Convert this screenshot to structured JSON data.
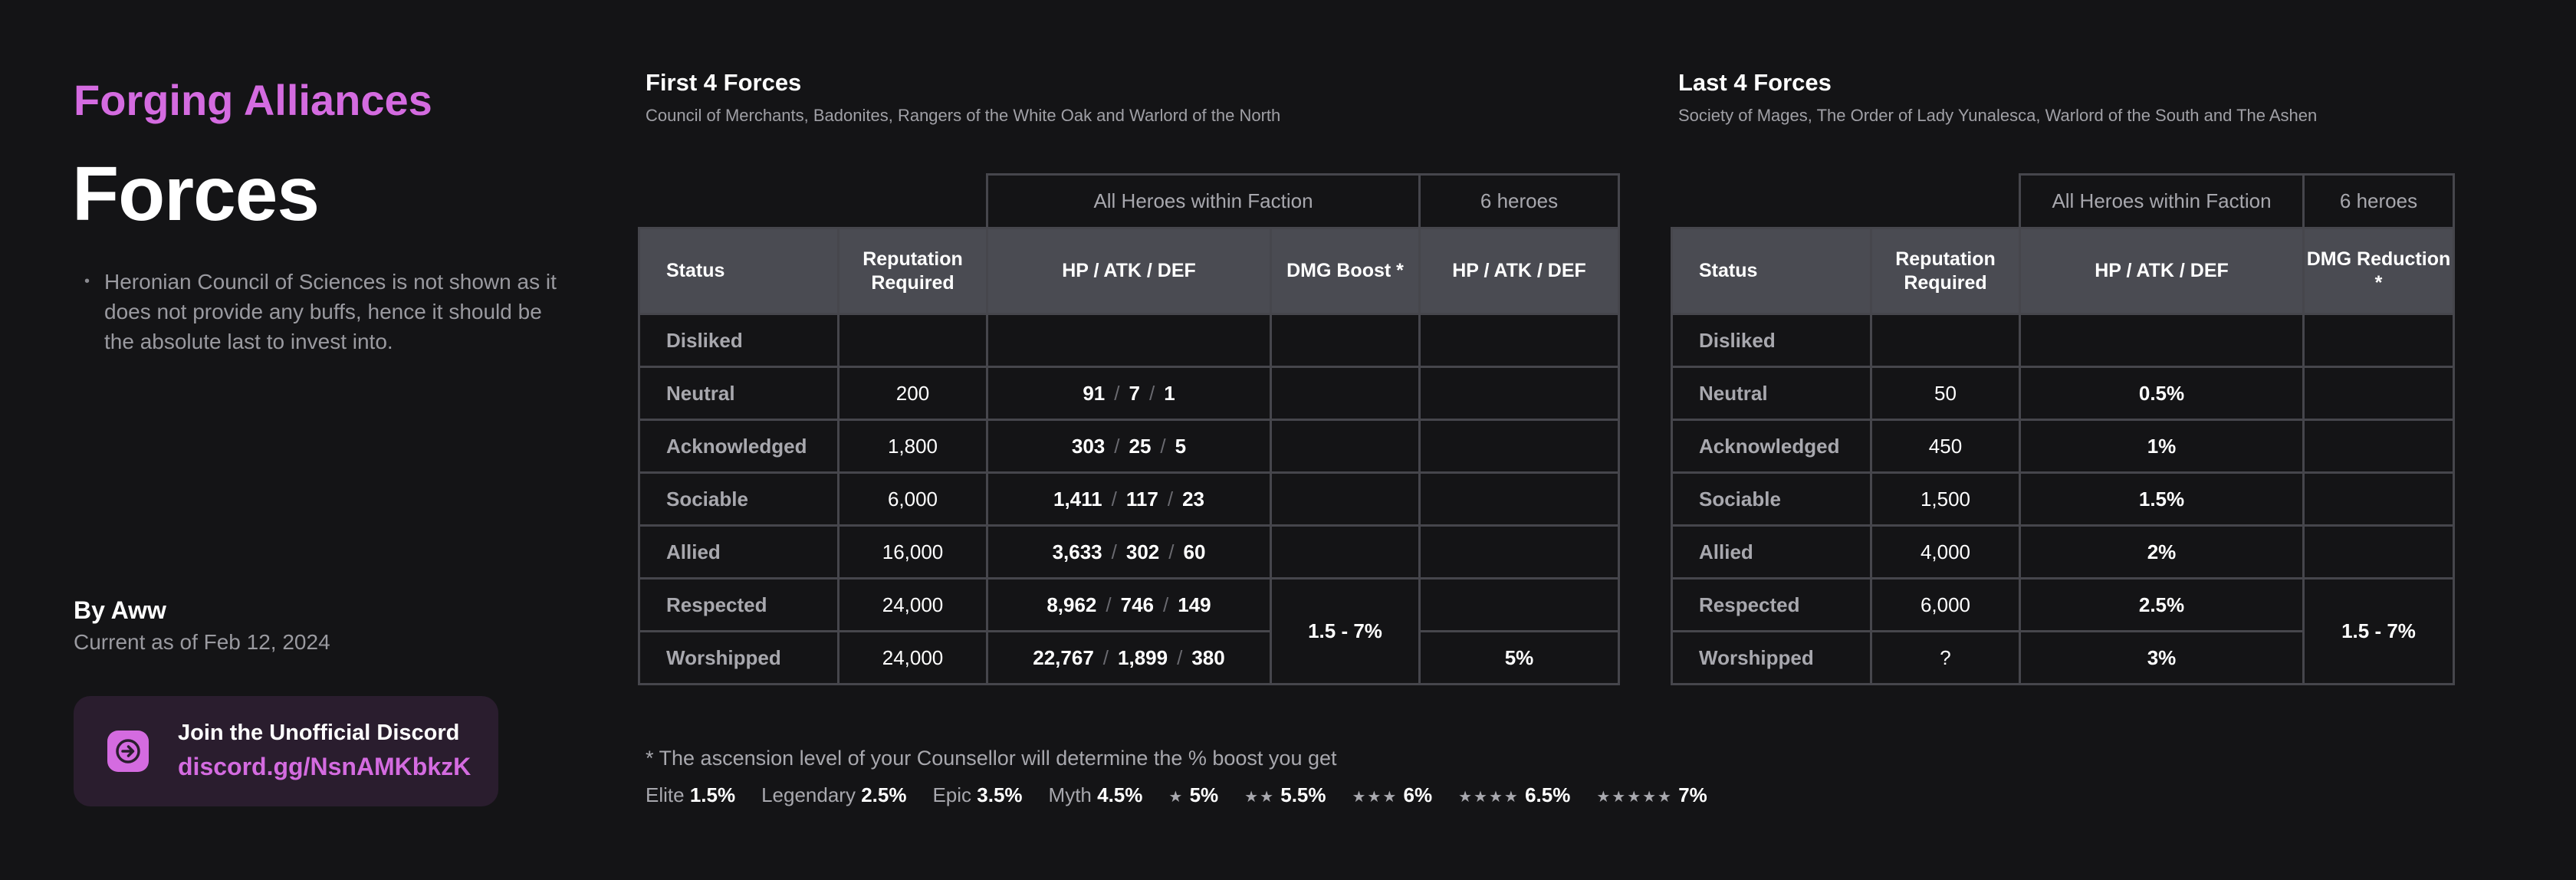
{
  "header": {
    "supertitle": "Forging Alliances",
    "title": "Forces",
    "note": "Heronian Council of Sciences is not shown as it does not provide any buffs, hence it should be the absolute last to invest into."
  },
  "byline": {
    "author": "By Aww",
    "as_of": "Current as of Feb 12, 2024"
  },
  "discord": {
    "heading": "Join the Unofficial Discord",
    "link": "discord.gg/NsnAMKbkzK",
    "icon": "arrow-right-icon",
    "accent": "#d46be0"
  },
  "first": {
    "title": "First 4 Forces",
    "subtitle": "Council of Merchants, Badonites, Rangers of the White Oak and Warlord of the North",
    "group_all": "All Heroes within Faction",
    "group_six": "6 heroes",
    "headers": {
      "status": "Status",
      "rep": "Reputation Required",
      "stats": "HP / ATK / DEF",
      "dmg": "DMG Boost *",
      "six": "HP / ATK / DEF"
    },
    "rows": [
      {
        "status": "Disliked",
        "rep": "",
        "hp": "",
        "atk": "",
        "def": ""
      },
      {
        "status": "Neutral",
        "rep": "200",
        "hp": "91",
        "atk": "7",
        "def": "1"
      },
      {
        "status": "Acknowledged",
        "rep": "1,800",
        "hp": "303",
        "atk": "25",
        "def": "5"
      },
      {
        "status": "Sociable",
        "rep": "6,000",
        "hp": "1,411",
        "atk": "117",
        "def": "23"
      },
      {
        "status": "Allied",
        "rep": "16,000",
        "hp": "3,633",
        "atk": "302",
        "def": "60"
      },
      {
        "status": "Respected",
        "rep": "24,000",
        "hp": "8,962",
        "atk": "746",
        "def": "149"
      },
      {
        "status": "Worshipped",
        "rep": "24,000",
        "hp": "22,767",
        "atk": "1,899",
        "def": "380"
      }
    ],
    "dmg_merged": "1.5 - 7%",
    "six_worshipped": "5%"
  },
  "last": {
    "title": "Last 4 Forces",
    "subtitle": "Society of Mages, The Order of Lady Yunalesca, Warlord of the South and The Ashen",
    "group_all": "All Heroes within Faction",
    "group_six": "6 heroes",
    "headers": {
      "status": "Status",
      "rep": "Reputation Required",
      "stats": "HP / ATK / DEF",
      "dmg": "DMG Reduction *"
    },
    "rows": [
      {
        "status": "Disliked",
        "rep": "",
        "pct": ""
      },
      {
        "status": "Neutral",
        "rep": "50",
        "pct": "0.5%"
      },
      {
        "status": "Acknowledged",
        "rep": "450",
        "pct": "1%"
      },
      {
        "status": "Sociable",
        "rep": "1,500",
        "pct": "1.5%"
      },
      {
        "status": "Allied",
        "rep": "4,000",
        "pct": "2%"
      },
      {
        "status": "Respected",
        "rep": "6,000",
        "pct": "2.5%"
      },
      {
        "status": "Worshipped",
        "rep": "?",
        "pct": "3%"
      }
    ],
    "dmg_merged": "1.5 - 7%"
  },
  "footer": {
    "note": "* The ascension level of your Counsellor will determine the % boost you get",
    "levels": [
      {
        "label": "Elite",
        "value": "1.5%"
      },
      {
        "label": "Legendary",
        "value": "2.5%"
      },
      {
        "label": "Epic",
        "value": "3.5%"
      },
      {
        "label": "Myth",
        "value": "4.5%"
      },
      {
        "label": "★",
        "value": "5%"
      },
      {
        "label": "★★",
        "value": "5.5%"
      },
      {
        "label": "★★★",
        "value": "6%"
      },
      {
        "label": "★★★★",
        "value": "6.5%"
      },
      {
        "label": "★★★★★",
        "value": "7%"
      }
    ]
  }
}
